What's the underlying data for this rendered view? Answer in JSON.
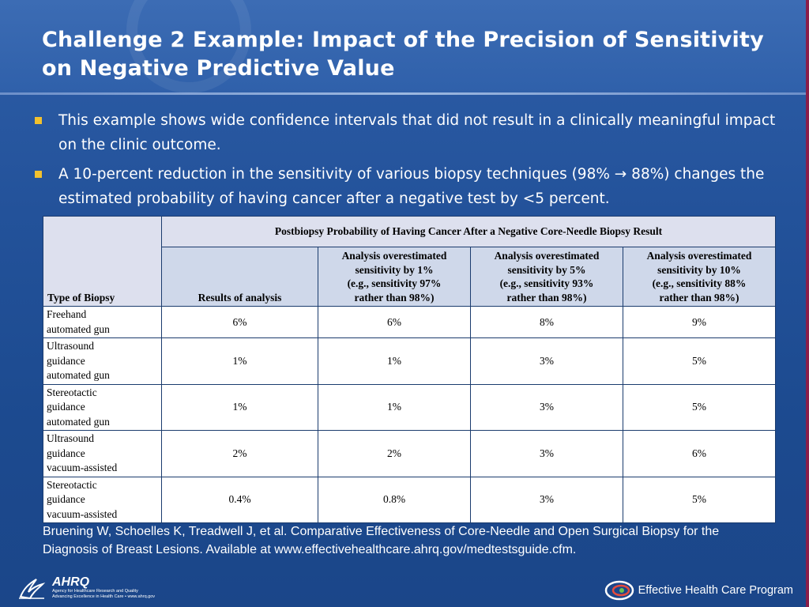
{
  "slide": {
    "title": "Challenge 2 Example: Impact of the Precision of Sensitivity on Negative Predictive Value"
  },
  "bullets": [
    "This example shows wide confidence intervals that did not result in a clinically meaningful impact on the clinic outcome.",
    "A 10-percent reduction in the sensitivity of various biopsy techniques (98% → 88%) changes the estimated probability of having cancer after a negative test by <5 percent."
  ],
  "table": {
    "type_header": "Type of Biopsy",
    "span_header": "Postbiopsy Probability of Having Cancer After a Negative Core-Needle Biopsy Result",
    "results_header": "Results of analysis",
    "sub_headers": [
      [
        "Analysis overestimated",
        "sensitivity by 1%",
        "(e.g., sensitivity 97%",
        "rather than 98%)"
      ],
      [
        "Analysis overestimated",
        "sensitivity by 5%",
        "(e.g., sensitivity 93%",
        "rather than 98%)"
      ],
      [
        "Analysis overestimated",
        "sensitivity by 10%",
        "(e.g., sensitivity 88%",
        "rather than 98%)"
      ]
    ],
    "rows": [
      {
        "label": [
          "Freehand",
          "automated gun"
        ],
        "values": [
          "6%",
          "6%",
          "8%",
          "9%"
        ]
      },
      {
        "label": [
          "Ultrasound",
          "guidance",
          "automated gun"
        ],
        "values": [
          "1%",
          "1%",
          "3%",
          "5%"
        ]
      },
      {
        "label": [
          "Stereotactic",
          "guidance",
          "automated gun"
        ],
        "values": [
          "1%",
          "1%",
          "3%",
          "5%"
        ]
      },
      {
        "label": [
          "Ultrasound",
          "guidance",
          "vacuum-assisted"
        ],
        "values": [
          "2%",
          "2%",
          "3%",
          "6%"
        ]
      },
      {
        "label": [
          "Stereotactic",
          "guidance",
          "vacuum-assisted"
        ],
        "values": [
          "0.4%",
          "0.8%",
          "3%",
          "5%"
        ]
      }
    ]
  },
  "citation": "Bruening W, Schoelles K, Treadwell J, et al. Comparative Effectiveness of Core-Needle and Open Surgical Biopsy for the Diagnosis of Breast Lesions. Available at www.effectivehealthcare.ahrq.gov/medtestsguide.cfm.",
  "footer": {
    "ahrq_name": "AHRQ",
    "ahrq_tag_line1": "Agency for Healthcare Research and Quality",
    "ahrq_tag_line2": "Advancing Excellence in Health Care • www.ahrq.gov",
    "program_name": "Effective Health Care Program"
  },
  "icons": {
    "hhs": "hhs-eagle-logo-icon",
    "ehc": "effective-health-care-logo-icon"
  },
  "colors": {
    "background": "#23529a",
    "bullet": "#f2c12e",
    "accent_stripe": "#8a1f4a",
    "table_header": "#cfd8ea"
  }
}
